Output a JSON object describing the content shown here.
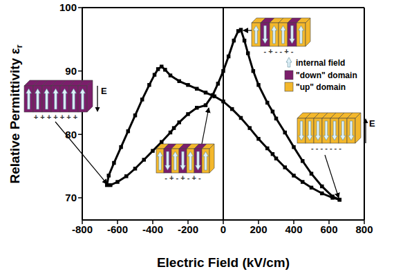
{
  "chart_data": {
    "type": "scatter",
    "x_label": "Electric Field (kV/cm)",
    "y_label": "Relative Permittivity εr",
    "x": [
      660,
      620,
      560,
      500,
      450,
      400,
      350,
      300,
      280,
      250,
      200,
      170,
      140,
      120,
      100,
      85,
      60,
      30,
      0,
      -30,
      -60,
      -100,
      -150,
      -200,
      -250,
      -280,
      -300,
      -350,
      -400,
      -450,
      -500,
      -550,
      -600,
      -640,
      -660,
      -650,
      -620,
      -580,
      -540,
      -500,
      -460,
      -420,
      -390,
      -370,
      -350,
      -330,
      -300,
      -250,
      -200,
      -150,
      -100,
      -50,
      0,
      50,
      100,
      150,
      200,
      250,
      280,
      300,
      350,
      400,
      450,
      500,
      560,
      620,
      660
    ],
    "values": [
      69.7,
      70.2,
      71.8,
      73.8,
      75.8,
      78.0,
      80.3,
      82.5,
      83.6,
      85.0,
      87.8,
      90.0,
      92.8,
      94.8,
      96.5,
      96.3,
      94.8,
      92.3,
      90.0,
      88.0,
      86.2,
      84.6,
      84.2,
      83.2,
      81.9,
      81.0,
      80.3,
      78.8,
      77.4,
      76.0,
      74.6,
      73.4,
      72.5,
      72.0,
      72.0,
      73.5,
      75.5,
      78.0,
      80.5,
      83.0,
      85.5,
      87.8,
      89.4,
      90.3,
      90.7,
      90.2,
      89.3,
      88.4,
      87.8,
      87.2,
      86.6,
      86.0,
      85.2,
      84.0,
      82.6,
      81.0,
      79.3,
      77.8,
      76.9,
      76.2,
      74.8,
      73.5,
      72.5,
      71.6,
      70.7,
      70.0,
      69.7
    ],
    "color": "#000000",
    "marker": "square",
    "line_style": "solid",
    "xlim": [
      -800,
      800
    ],
    "xticks": [
      -800,
      -600,
      -400,
      -200,
      0,
      200,
      400,
      600,
      800
    ],
    "ylim": [
      66.5,
      100
    ],
    "yticks": [
      70,
      80,
      90,
      100
    ],
    "grid": false,
    "reference_lines": [
      {
        "x": 0
      }
    ]
  },
  "key": {
    "internal_field": "internal field",
    "down_domain": "\"down\" domain",
    "up_domain": "\"up\" domain",
    "down_color": "#7b1e6b",
    "up_color": "#f3b72b",
    "arrow_color": "#dff1f9"
  },
  "field_label": "E",
  "insets": [
    {
      "domains": [
        "down",
        "down",
        "down",
        "down",
        "down",
        "down",
        "down"
      ],
      "arrows": [
        "up",
        "up",
        "up",
        "up",
        "up",
        "up",
        "up"
      ],
      "signs": "+ + + + + + +",
      "field": "down"
    },
    {
      "domains": [
        "up",
        "down",
        "up",
        "down",
        "up",
        "down",
        "up"
      ],
      "arrows": [
        "up",
        "down",
        "up",
        "down",
        "up",
        "down",
        "up"
      ],
      "signs": "- + - + - + -",
      "field": null
    },
    {
      "domains": [
        "up",
        "down",
        "up",
        "up",
        "down",
        "up"
      ],
      "arrows": [
        "up",
        "down",
        "up",
        "up",
        "down",
        "up"
      ],
      "signs": "- + - - + -",
      "field": null
    },
    {
      "domains": [
        "up",
        "up",
        "up",
        "up",
        "up",
        "up",
        "up"
      ],
      "arrows": [
        "down",
        "down",
        "down",
        "down",
        "down",
        "down",
        "down"
      ],
      "signs": "- - - - - - -",
      "field": "up"
    }
  ]
}
